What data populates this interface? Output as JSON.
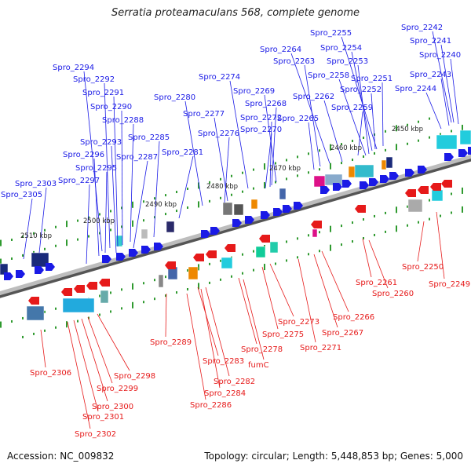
{
  "title": "Serratia proteamaculans 568, complete genome",
  "footer": {
    "accession": "Accession: NC_009832",
    "summary": "Topology: circular; Length: 5,448,853 bp; Genes: 5,000"
  },
  "colors": {
    "forward": "#1a1ae6",
    "reverse": "#e61a1a",
    "backbone": "#9a9a9a",
    "tick": "#2f9a2f"
  },
  "kbp_ticks": [
    "2450 kbp",
    "2460 kbp",
    "2470 kbp",
    "2480 kbp",
    "2490 kbp",
    "2500 kbp",
    "2510 kbp"
  ],
  "forward_labels": [
    "Spro_2242",
    "Spro_2241",
    "Spro_2240",
    "Spro_2243",
    "Spro_2244",
    "Spro_2255",
    "Spro_2254",
    "Spro_2264",
    "Spro_2253",
    "Spro_2263",
    "Spro_2258",
    "Spro_2251",
    "Spro_2252",
    "Spro_2262",
    "Spro_2259",
    "Spro_2265",
    "Spro_2274",
    "Spro_2269",
    "Spro_2268",
    "Spro_2272",
    "Spro_2270",
    "Spro_2280",
    "Spro_2277",
    "Spro_2276",
    "Spro_2294",
    "Spro_2292",
    "Spro_2291",
    "Spro_2290",
    "Spro_2288",
    "Spro_2285",
    "Spro_2293",
    "Spro_2281",
    "Spro_2296",
    "Spro_2287",
    "Spro_2295",
    "Spro_2297",
    "Spro_2303",
    "Spro_2305"
  ],
  "reverse_labels": [
    "Spro_2250",
    "Spro_2249",
    "Spro_2261",
    "Spro_2260",
    "Spro_2266",
    "Spro_2267",
    "Spro_2273",
    "Spro_2275",
    "Spro_2271",
    "Spro_2278",
    "fumC",
    "Spro_2289",
    "Spro_2283",
    "Spro_2282",
    "Spro_2284",
    "Spro_2286",
    "Spro_2306",
    "Spro_2298",
    "Spro_2299",
    "Spro_2300",
    "Spro_2301",
    "Spro_2302"
  ]
}
